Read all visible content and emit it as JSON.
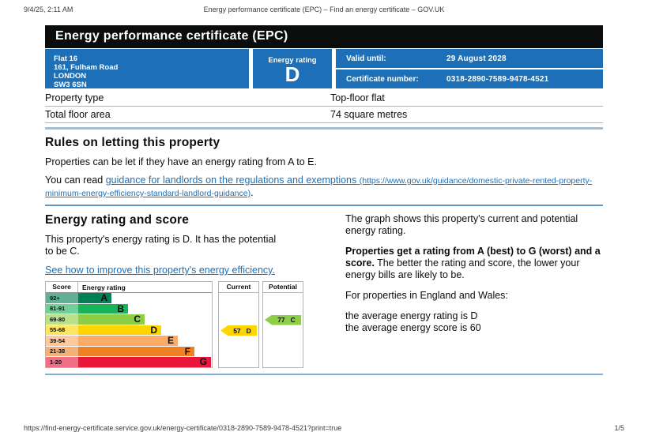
{
  "theme": {
    "brand_blue": "#1d70b8",
    "banner_black": "#0b0c0c",
    "link_blue": "#1d70b8",
    "border_gray": "#b1b4b6"
  },
  "print_header": {
    "datetime": "9/4/25, 2:11 AM",
    "title": "Energy performance certificate (EPC) – Find an energy certificate – GOV.UK"
  },
  "print_footer": {
    "url": "https://find-energy-certificate.service.gov.uk/energy-certificate/0318-2890-7589-9478-4521?print=true",
    "page": "1/5"
  },
  "banner": {
    "title": "Energy performance certificate (EPC)"
  },
  "summary": {
    "address_lines": [
      "Flat 16",
      "161, Fulham Road",
      "LONDON",
      "SW3 6SN"
    ],
    "energy_rating_label": "Energy rating",
    "energy_rating": "D",
    "valid_until_label": "Valid until:",
    "valid_until": "29 August 2028",
    "certificate_number_label": "Certificate number:",
    "certificate_number": "0318-2890-7589-9478-4521"
  },
  "property_table": {
    "rows": [
      {
        "label": "Property type",
        "value": "Top-floor flat"
      },
      {
        "label": "Total floor area",
        "value": "74 square metres"
      }
    ]
  },
  "rules": {
    "heading": "Rules on letting this property",
    "para1": "Properties can be let if they have an energy rating from A to E.",
    "para2_prefix": "You can read ",
    "link_text": "guidance for landlords on the regulations and exemptions",
    "link_url_text": "(https://www.gov.uk/guidance/domestic-private-rented-property-minimum-energy-efficiency-standard-landlord-guidance)",
    "para2_suffix": "."
  },
  "rating": {
    "heading": "Energy rating and score",
    "para1": "This property's energy rating is D. It has the potential to be C.",
    "improve_link": "See how to improve this property's energy efficiency.",
    "right_para1": "The graph shows this property's current and potential energy rating.",
    "right_para2_bold": "Properties get a rating from A (best) to G (worst) and a score.",
    "right_para2_rest": " The better the rating and score, the lower your energy bills are likely to be.",
    "right_para3": "For properties in England and Wales:",
    "right_line1": "the average energy rating is D",
    "right_line2": "the average energy score is 60"
  },
  "chart_data": {
    "type": "bar",
    "title": "EPC energy rating and score chart",
    "headers": {
      "score": "Score",
      "rating": "Energy rating",
      "current": "Current",
      "potential": "Potential"
    },
    "bands": [
      {
        "score_range": "92+",
        "letter": "A",
        "color": "#008054"
      },
      {
        "score_range": "81-91",
        "letter": "B",
        "color": "#19b459"
      },
      {
        "score_range": "69-80",
        "letter": "C",
        "color": "#8dce46"
      },
      {
        "score_range": "55-68",
        "letter": "D",
        "color": "#ffd500"
      },
      {
        "score_range": "39-54",
        "letter": "E",
        "color": "#fcaa65"
      },
      {
        "score_range": "21-38",
        "letter": "F",
        "color": "#ef8023"
      },
      {
        "score_range": "1-20",
        "letter": "G",
        "color": "#e9153b"
      }
    ],
    "current": {
      "value": 57,
      "letter": "D",
      "color": "#ffd500"
    },
    "potential": {
      "value": 77,
      "letter": "C",
      "color": "#8dce46"
    }
  }
}
